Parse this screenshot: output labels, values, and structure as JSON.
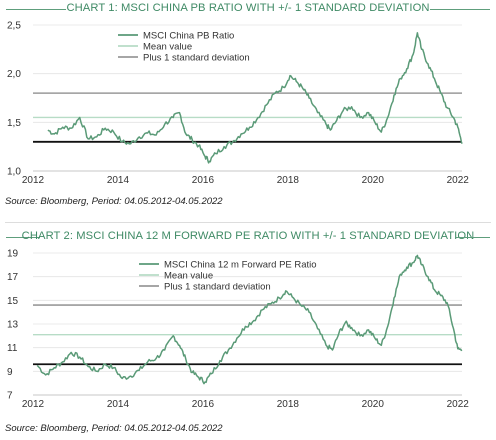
{
  "charts": [
    {
      "title": "CHART 1: MSCI CHINA PB RATIO WITH +/- 1 STANDARD DEVIATION",
      "source": "Source: Bloomberg, Period: 04.05.2012-04.05.2022"
    },
    {
      "title": "CHART 2: MSCI CHINA 12 M FORWARD PE RATIO WITH +/- 1 STANDARD DEVIATION",
      "source": "Source: Bloomberg, Period: 04.05.2012-04.05.2022"
    }
  ],
  "colors": {
    "series": "#5a9a77",
    "mean": "#b7dcc6",
    "plus_sd": "#9a9a9a",
    "minus_sd": "#111111",
    "title": "#3f8a65"
  },
  "chart_data": [
    {
      "type": "line",
      "title": "CHART 1: MSCI CHINA PB RATIO WITH +/- 1 STANDARD DEVIATION",
      "xlabel": "",
      "ylabel": "",
      "xlim": [
        2012.0,
        2022.1
      ],
      "ylim": [
        1.0,
        2.5
      ],
      "xticks": [
        2012,
        2014,
        2016,
        2018,
        2020,
        2022
      ],
      "xtick_labels": [
        "2012",
        "2014",
        "2016",
        "2018",
        "2020",
        "2022"
      ],
      "yticks": [
        1.0,
        1.5,
        2.0,
        2.5
      ],
      "ytick_labels": [
        "1,0",
        "1,5",
        "2,0",
        "2,5"
      ],
      "grid": "horizontal",
      "legend_position": "top-left",
      "series": [
        {
          "name": "MSCI China PB Ratio",
          "x": [
            2012.35,
            2012.5,
            2012.7,
            2012.9,
            2013.1,
            2013.3,
            2013.5,
            2013.7,
            2013.9,
            2014.1,
            2014.3,
            2014.5,
            2014.7,
            2014.9,
            2015.1,
            2015.3,
            2015.45,
            2015.6,
            2015.75,
            2015.9,
            2016.05,
            2016.15,
            2016.3,
            2016.5,
            2016.7,
            2016.9,
            2017.1,
            2017.3,
            2017.5,
            2017.7,
            2017.9,
            2018.05,
            2018.2,
            2018.35,
            2018.5,
            2018.7,
            2018.9,
            2019.0,
            2019.15,
            2019.3,
            2019.5,
            2019.7,
            2019.9,
            2020.05,
            2020.2,
            2020.35,
            2020.5,
            2020.65,
            2020.8,
            2020.95,
            2021.05,
            2021.15,
            2021.3,
            2021.45,
            2021.6,
            2021.75,
            2021.9,
            2022.0,
            2022.1
          ],
          "y": [
            1.42,
            1.38,
            1.45,
            1.44,
            1.55,
            1.33,
            1.35,
            1.44,
            1.4,
            1.3,
            1.28,
            1.35,
            1.39,
            1.37,
            1.48,
            1.55,
            1.6,
            1.38,
            1.32,
            1.26,
            1.15,
            1.1,
            1.18,
            1.25,
            1.3,
            1.38,
            1.45,
            1.55,
            1.68,
            1.8,
            1.86,
            1.98,
            1.92,
            1.85,
            1.75,
            1.6,
            1.48,
            1.42,
            1.52,
            1.62,
            1.66,
            1.55,
            1.6,
            1.5,
            1.4,
            1.55,
            1.78,
            1.95,
            2.05,
            2.2,
            2.42,
            2.25,
            2.1,
            1.95,
            1.8,
            1.65,
            1.55,
            1.45,
            1.28
          ]
        },
        {
          "name": "Mean value",
          "y": 1.55
        },
        {
          "name": "Plus 1 standard deviation",
          "y": 1.8
        },
        {
          "name": "Minus 1 standard deviation",
          "y": 1.3
        }
      ]
    },
    {
      "type": "line",
      "title": "CHART 2: MSCI CHINA 12 M FORWARD PE RATIO WITH +/- 1 STANDARD DEVIATION",
      "xlabel": "",
      "ylabel": "",
      "xlim": [
        2012.0,
        2022.1
      ],
      "ylim": [
        7,
        19
      ],
      "xticks": [
        2012,
        2014,
        2016,
        2018,
        2020,
        2022
      ],
      "xtick_labels": [
        "2012",
        "2014",
        "2016",
        "2018",
        "2020",
        "2022"
      ],
      "yticks": [
        7,
        9,
        11,
        13,
        15,
        17,
        19
      ],
      "ytick_labels": [
        "7",
        "9",
        "11",
        "13",
        "15",
        "17",
        "19"
      ],
      "grid": "horizontal",
      "legend_position": "top-center",
      "series": [
        {
          "name": "MSCI China 12 m Forward PE Ratio",
          "x": [
            2012.1,
            2012.3,
            2012.5,
            2012.7,
            2012.9,
            2013.1,
            2013.3,
            2013.5,
            2013.7,
            2013.9,
            2014.1,
            2014.3,
            2014.5,
            2014.7,
            2014.9,
            2015.1,
            2015.3,
            2015.45,
            2015.6,
            2015.75,
            2015.9,
            2016.05,
            2016.2,
            2016.4,
            2016.6,
            2016.8,
            2017.0,
            2017.2,
            2017.4,
            2017.6,
            2017.8,
            2017.95,
            2018.1,
            2018.3,
            2018.5,
            2018.7,
            2018.9,
            2019.05,
            2019.2,
            2019.35,
            2019.5,
            2019.7,
            2019.9,
            2020.05,
            2020.2,
            2020.35,
            2020.5,
            2020.65,
            2020.8,
            2020.95,
            2021.05,
            2021.15,
            2021.3,
            2021.45,
            2021.6,
            2021.75,
            2021.9,
            2022.0,
            2022.1
          ],
          "y": [
            9.5,
            8.7,
            9.3,
            9.8,
            10.6,
            10.2,
            9.4,
            9.0,
            9.6,
            9.3,
            8.4,
            8.6,
            9.1,
            9.8,
            10.1,
            10.8,
            12.0,
            11.2,
            10.0,
            8.9,
            8.5,
            8.1,
            8.8,
            9.9,
            10.8,
            11.8,
            12.8,
            13.3,
            14.2,
            14.7,
            15.2,
            15.8,
            15.3,
            14.6,
            14.0,
            12.6,
            11.2,
            10.8,
            12.2,
            13.1,
            12.7,
            12.0,
            12.5,
            11.8,
            11.2,
            12.8,
            15.2,
            17.2,
            17.8,
            18.2,
            18.8,
            18.0,
            17.0,
            15.9,
            15.4,
            14.8,
            12.6,
            10.9,
            10.8
          ]
        },
        {
          "name": "Mean value",
          "y": 12.1
        },
        {
          "name": "Plus 1 standard deviation",
          "y": 14.6
        },
        {
          "name": "Minus 1 standard deviation",
          "y": 9.6
        }
      ]
    }
  ]
}
